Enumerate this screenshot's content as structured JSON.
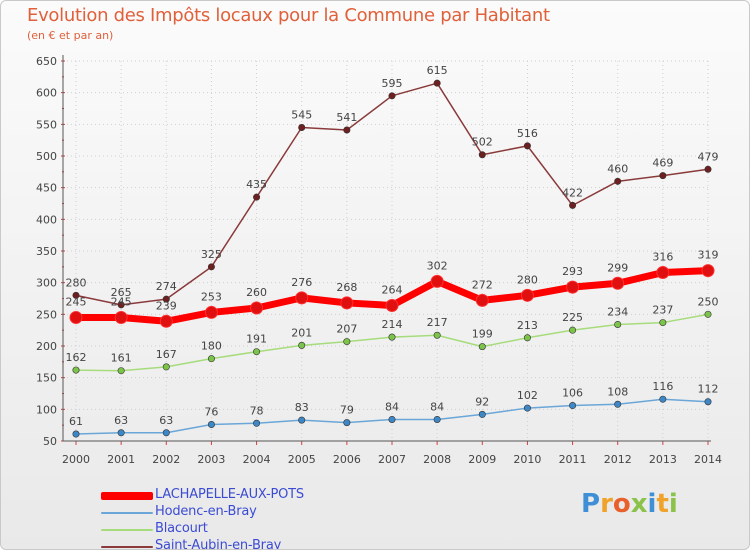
{
  "header": {
    "title": "Evolution des Impôts locaux pour la Commune par Habitant",
    "subtitle": "(en € et par an)"
  },
  "brand": {
    "name": "Proxiti",
    "letters": [
      "P",
      "r",
      "o",
      "x",
      "i",
      "t",
      "i"
    ],
    "letter_colors": [
      "#3e8fd6",
      "#f0a32a",
      "#e8602c",
      "#8bc34a",
      "#3e8fd6",
      "#f0a32a",
      "#8bc34a"
    ]
  },
  "chart_data": {
    "type": "line",
    "title": "Evolution des Impôts locaux pour la Commune par Habitant",
    "subtitle": "(en € et par an)",
    "xlabel": "",
    "ylabel": "",
    "ylim": [
      50,
      650
    ],
    "yticks": [
      50,
      100,
      150,
      200,
      250,
      300,
      350,
      400,
      450,
      500,
      550,
      600,
      650
    ],
    "grid": true,
    "categories": [
      "2000",
      "2001",
      "2002",
      "2003",
      "2004",
      "2005",
      "2006",
      "2007",
      "2008",
      "2009",
      "2010",
      "2011",
      "2012",
      "2013",
      "2014"
    ],
    "series": [
      {
        "name": "LACHAPELLE-AUX-POTS",
        "color": "#ff0000",
        "point_color": "#e01010",
        "emphasis": true,
        "values": [
          245,
          245,
          239,
          253,
          260,
          276,
          268,
          264,
          302,
          272,
          280,
          293,
          299,
          316,
          319
        ]
      },
      {
        "name": "Hodenc-en-Bray",
        "color": "#6aa6d8",
        "point_color": "#3d87c6",
        "emphasis": false,
        "values": [
          61,
          63,
          63,
          76,
          78,
          83,
          79,
          84,
          84,
          92,
          102,
          106,
          108,
          116,
          112
        ]
      },
      {
        "name": "Blacourt",
        "color": "#a6dc7c",
        "point_color": "#7cc34a",
        "emphasis": false,
        "values": [
          162,
          161,
          167,
          180,
          191,
          201,
          207,
          214,
          217,
          199,
          213,
          225,
          234,
          237,
          250
        ]
      },
      {
        "name": "Saint-Aubin-en-Bray",
        "color": "#8a3a3a",
        "point_color": "#6e1f1f",
        "emphasis": false,
        "values": [
          280,
          265,
          274,
          325,
          435,
          545,
          541,
          595,
          615,
          502,
          516,
          422,
          460,
          469,
          479
        ]
      }
    ]
  }
}
